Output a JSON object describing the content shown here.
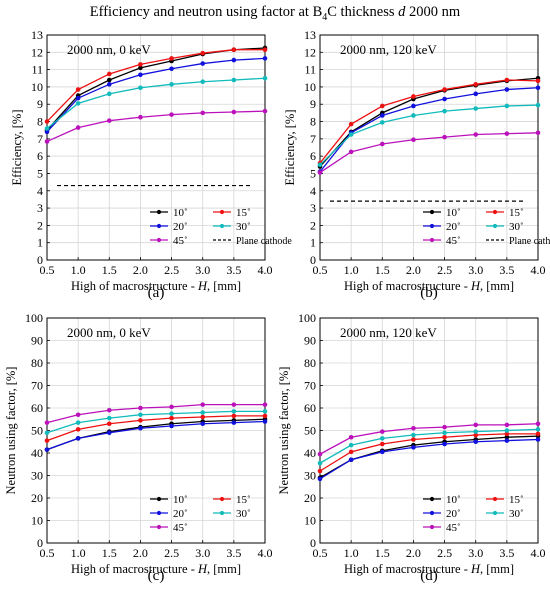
{
  "figure": {
    "title_prefix": "Efficiency and neutron using factor at B",
    "title_sub": "4",
    "title_mid": "C thickness ",
    "title_var": "d",
    "title_suffix": " 2000 nm"
  },
  "colors": {
    "10": "#000000",
    "15": "#ee1111",
    "20": "#1111dd",
    "30": "#11bbbb",
    "45": "#bb11bb",
    "plane": "#000000"
  },
  "chart_data": [
    {
      "type": "line",
      "label": "(a)",
      "annotation": "2000 nm, 0 keV",
      "xlabel": "High of macrostructure - H, [mm]",
      "ylabel": "Efficiency, [%]",
      "xlim": [
        0.5,
        4.0
      ],
      "ylim": [
        0,
        13
      ],
      "x_ticks": [
        0.5,
        1.0,
        1.5,
        2.0,
        2.5,
        3.0,
        3.5,
        4.0
      ],
      "y_ticks": [
        0,
        1,
        2,
        3,
        4,
        5,
        6,
        7,
        8,
        9,
        10,
        11,
        12,
        13
      ],
      "grid": true,
      "x": [
        0.5,
        1.0,
        1.5,
        2.0,
        2.5,
        3.0,
        3.5,
        4.0
      ],
      "series": [
        {
          "name": "10˚",
          "color_key": "10",
          "values": [
            7.5,
            9.5,
            10.4,
            11.1,
            11.5,
            11.9,
            12.15,
            12.25
          ]
        },
        {
          "name": "15˚",
          "color_key": "15",
          "values": [
            8.0,
            9.85,
            10.75,
            11.3,
            11.65,
            11.95,
            12.15,
            12.15
          ]
        },
        {
          "name": "20˚",
          "color_key": "20",
          "values": [
            7.4,
            9.35,
            10.15,
            10.7,
            11.05,
            11.35,
            11.55,
            11.65
          ]
        },
        {
          "name": "30˚",
          "color_key": "30",
          "values": [
            7.6,
            9.05,
            9.6,
            9.95,
            10.15,
            10.3,
            10.4,
            10.5
          ]
        },
        {
          "name": "45˚",
          "color_key": "45",
          "values": [
            6.85,
            7.65,
            8.05,
            8.25,
            8.4,
            8.5,
            8.55,
            8.6
          ]
        }
      ],
      "reference": {
        "name": "Plane cathode",
        "value": 4.3
      },
      "legend_position": "lower-right"
    },
    {
      "type": "line",
      "label": "(b)",
      "annotation": "2000 nm, 120 keV",
      "xlabel": "High of macrostructure - H, [mm]",
      "ylabel": "Efficiency, [%]",
      "xlim": [
        0.5,
        4.0
      ],
      "ylim": [
        0,
        13
      ],
      "x_ticks": [
        0.5,
        1.0,
        1.5,
        2.0,
        2.5,
        3.0,
        3.5,
        4.0
      ],
      "y_ticks": [
        0,
        1,
        2,
        3,
        4,
        5,
        6,
        7,
        8,
        9,
        10,
        11,
        12,
        13
      ],
      "grid": true,
      "x": [
        0.5,
        1.0,
        1.5,
        2.0,
        2.5,
        3.0,
        3.5,
        4.0
      ],
      "series": [
        {
          "name": "10˚",
          "color_key": "10",
          "values": [
            5.4,
            7.4,
            8.5,
            9.3,
            9.8,
            10.1,
            10.35,
            10.5
          ]
        },
        {
          "name": "15˚",
          "color_key": "15",
          "values": [
            5.6,
            7.85,
            8.9,
            9.45,
            9.85,
            10.15,
            10.4,
            10.35
          ]
        },
        {
          "name": "20˚",
          "color_key": "20",
          "values": [
            5.1,
            7.35,
            8.35,
            8.9,
            9.3,
            9.6,
            9.85,
            9.95
          ]
        },
        {
          "name": "30˚",
          "color_key": "30",
          "values": [
            5.5,
            7.25,
            7.95,
            8.35,
            8.6,
            8.75,
            8.9,
            8.95
          ]
        },
        {
          "name": "45˚",
          "color_key": "45",
          "values": [
            5.05,
            6.25,
            6.7,
            6.95,
            7.1,
            7.25,
            7.3,
            7.35
          ]
        }
      ],
      "reference": {
        "name": "Plane cathode",
        "value": 3.4
      },
      "legend_position": "lower-right"
    },
    {
      "type": "line",
      "label": "(c)",
      "annotation": "2000 nm, 0 keV",
      "xlabel": "High of macrostructure - H, [mm]",
      "ylabel": "Neutron using factor, [%]",
      "xlim": [
        0.5,
        4.0
      ],
      "ylim": [
        0,
        100
      ],
      "x_ticks": [
        0.5,
        1.0,
        1.5,
        2.0,
        2.5,
        3.0,
        3.5,
        4.0
      ],
      "y_ticks": [
        0,
        10,
        20,
        30,
        40,
        50,
        60,
        70,
        80,
        90,
        100
      ],
      "grid": true,
      "x": [
        0.5,
        1.0,
        1.5,
        2.0,
        2.5,
        3.0,
        3.5,
        4.0
      ],
      "series": [
        {
          "name": "10˚",
          "color_key": "10",
          "values": [
            41.5,
            46.5,
            49.5,
            51.5,
            53.0,
            54.0,
            54.5,
            55.0
          ]
        },
        {
          "name": "15˚",
          "color_key": "15",
          "values": [
            45.5,
            50.5,
            53.0,
            54.5,
            55.5,
            56.0,
            56.5,
            56.5
          ]
        },
        {
          "name": "20˚",
          "color_key": "20",
          "values": [
            41.5,
            46.5,
            49.0,
            51.0,
            52.0,
            53.0,
            53.5,
            54.0
          ]
        },
        {
          "name": "30˚",
          "color_key": "30",
          "values": [
            49.0,
            53.5,
            55.5,
            57.0,
            57.5,
            58.0,
            58.5,
            58.5
          ]
        },
        {
          "name": "45˚",
          "color_key": "45",
          "values": [
            53.5,
            57.0,
            59.0,
            60.0,
            60.5,
            61.5,
            61.5,
            61.5
          ]
        }
      ],
      "legend_position": "lower-right"
    },
    {
      "type": "line",
      "label": "(d)",
      "annotation": "2000 nm, 120 keV",
      "xlabel": "High of macrostructure - H, [mm]",
      "ylabel": "Neutron using factor, [%]",
      "xlim": [
        0.5,
        4.0
      ],
      "ylim": [
        0,
        100
      ],
      "x_ticks": [
        0.5,
        1.0,
        1.5,
        2.0,
        2.5,
        3.0,
        3.5,
        4.0
      ],
      "y_ticks": [
        0,
        10,
        20,
        30,
        40,
        50,
        60,
        70,
        80,
        90,
        100
      ],
      "grid": true,
      "x": [
        0.5,
        1.0,
        1.5,
        2.0,
        2.5,
        3.0,
        3.5,
        4.0
      ],
      "series": [
        {
          "name": "10˚",
          "color_key": "10",
          "values": [
            29.0,
            37.0,
            41.0,
            43.5,
            45.0,
            46.0,
            47.0,
            47.5
          ]
        },
        {
          "name": "15˚",
          "color_key": "15",
          "values": [
            32.0,
            40.5,
            44.0,
            46.0,
            47.0,
            48.0,
            48.5,
            48.5
          ]
        },
        {
          "name": "20˚",
          "color_key": "20",
          "values": [
            28.5,
            37.0,
            40.5,
            42.5,
            44.0,
            45.0,
            45.5,
            46.0
          ]
        },
        {
          "name": "30˚",
          "color_key": "30",
          "values": [
            35.5,
            43.5,
            46.5,
            48.0,
            49.0,
            49.5,
            50.0,
            50.5
          ]
        },
        {
          "name": "45˚",
          "color_key": "45",
          "values": [
            39.5,
            47.0,
            49.5,
            51.0,
            51.5,
            52.5,
            52.5,
            53.0
          ]
        }
      ],
      "legend_position": "lower-right"
    }
  ]
}
